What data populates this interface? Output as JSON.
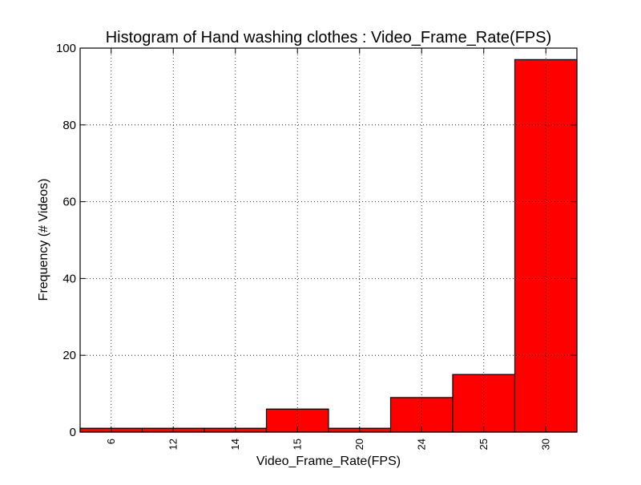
{
  "chart_data": {
    "type": "bar",
    "title": "Histogram of Hand washing clothes : Video_Frame_Rate(FPS)",
    "xlabel": "Video_Frame_Rate(FPS)",
    "ylabel": "Frequency (# Videos)",
    "categories": [
      "6",
      "12",
      "14",
      "15",
      "20",
      "24",
      "25",
      "30"
    ],
    "values": [
      1,
      1,
      1,
      6,
      1,
      9,
      15,
      97
    ],
    "ylim": [
      0,
      100
    ],
    "yticks": [
      0,
      20,
      40,
      60,
      80,
      100
    ],
    "grid": true,
    "bar_color": "#ff0000",
    "edge_color": "#000000"
  }
}
